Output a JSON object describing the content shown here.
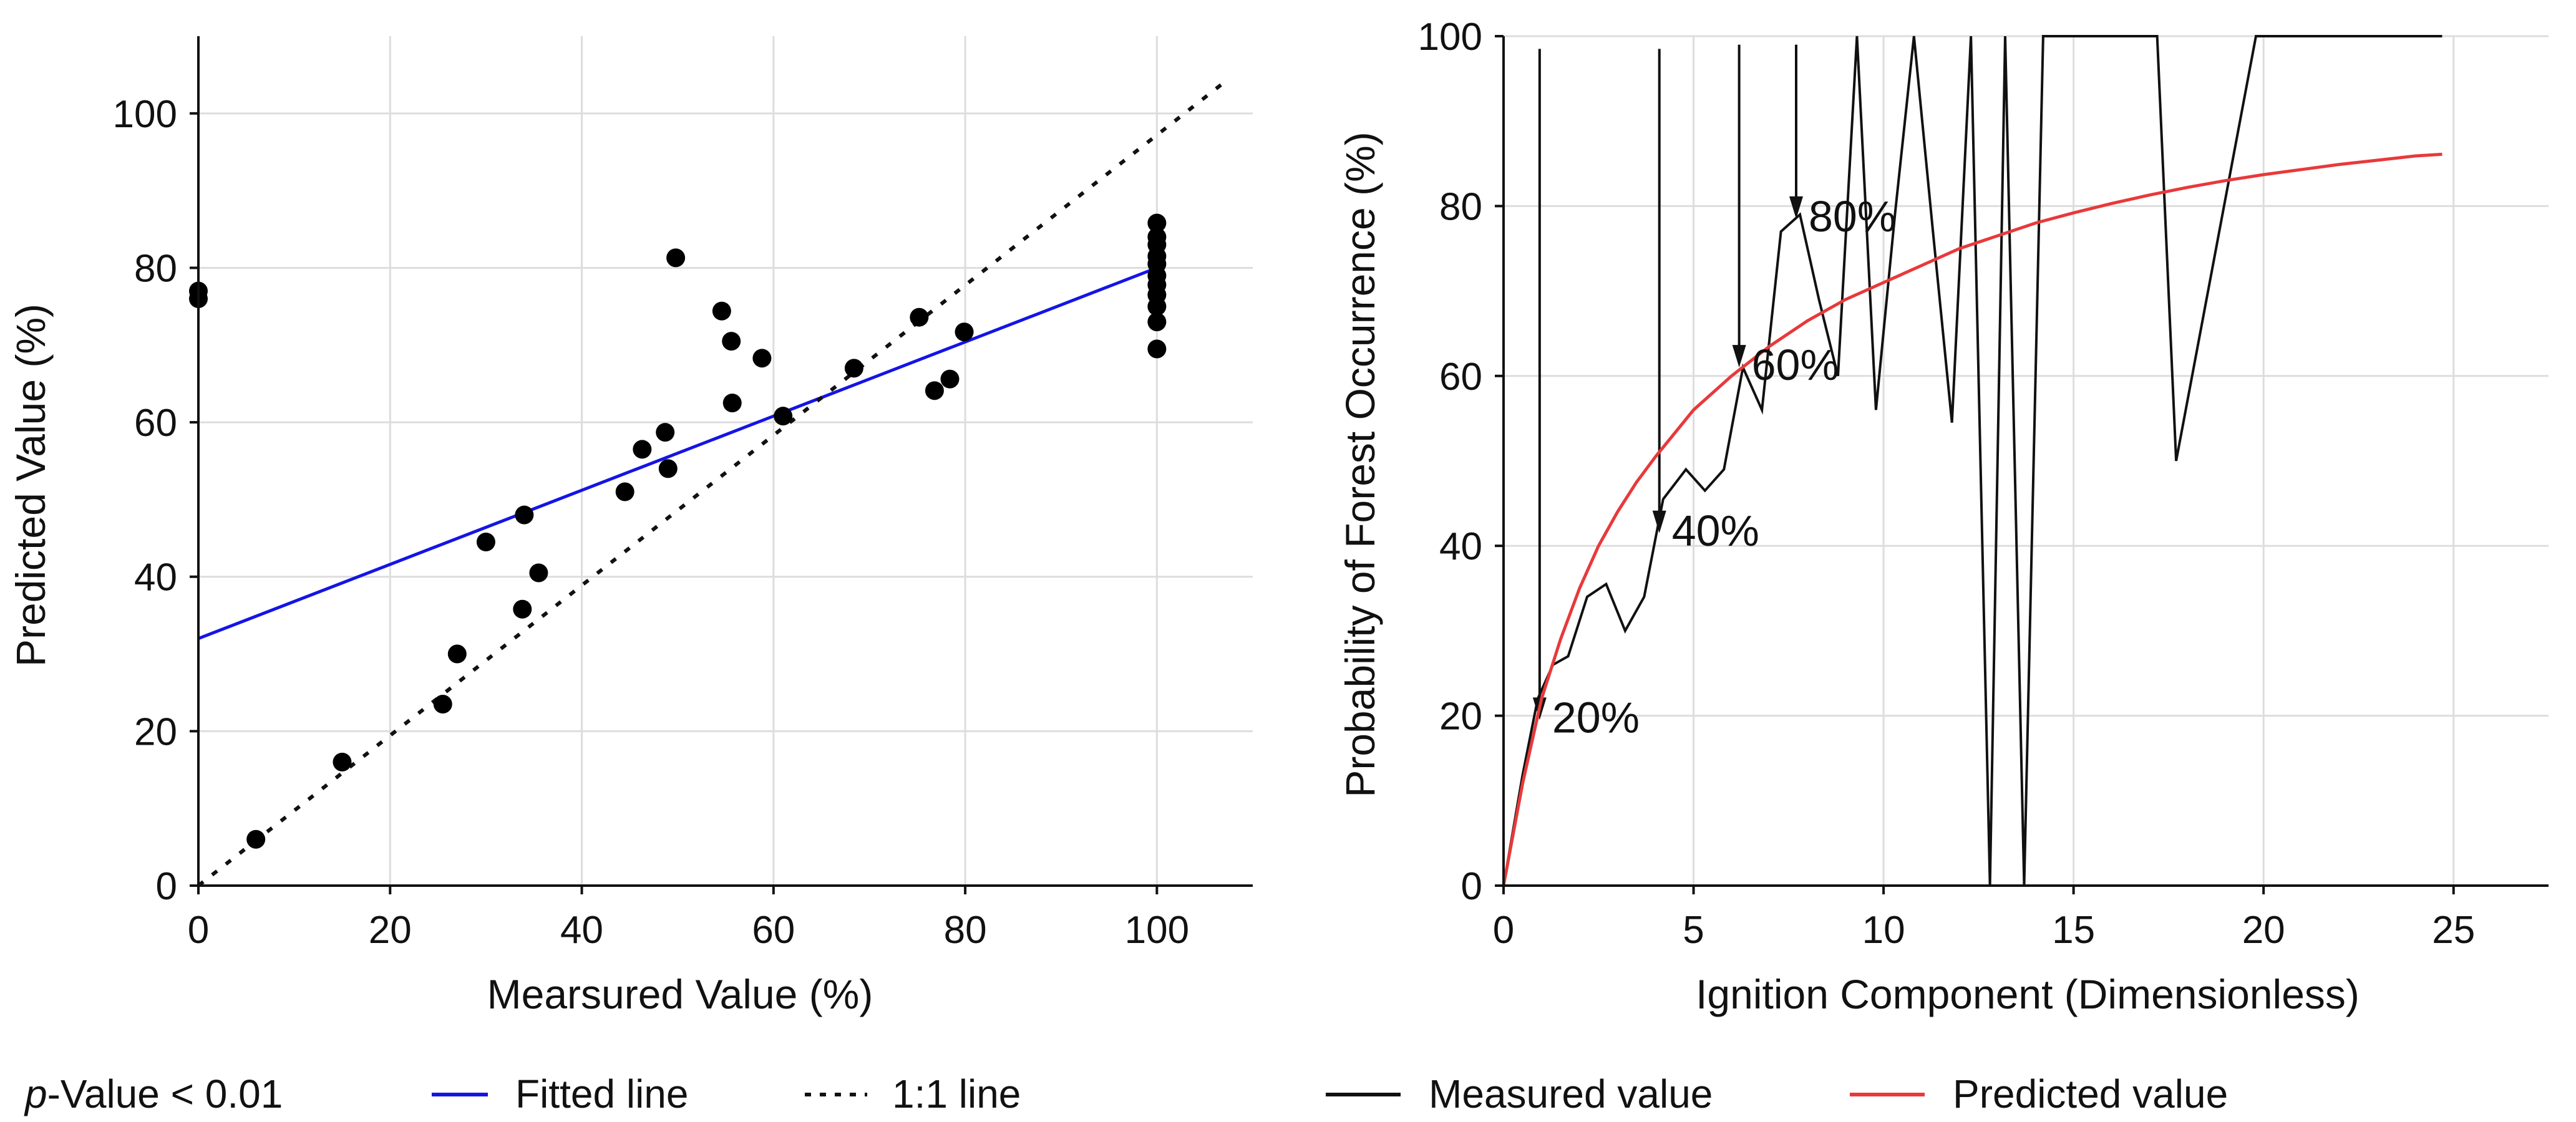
{
  "chart_data": [
    {
      "type": "scatter",
      "title": "",
      "xlabel": "Mearsured Value (%)",
      "ylabel": "Predicted Value (%)",
      "xlim": [
        0,
        110
      ],
      "ylim": [
        0,
        110
      ],
      "xticks": [
        0,
        20,
        40,
        60,
        80,
        100
      ],
      "yticks": [
        0,
        20,
        40,
        60,
        80,
        100
      ],
      "xtick_labels": [
        "0",
        "20",
        "40",
        "60",
        "80",
        "100"
      ],
      "ytick_labels": [
        "0",
        "20",
        "40",
        "60",
        "80",
        "100"
      ],
      "grid": true,
      "points": [
        [
          0,
          77
        ],
        [
          0,
          76
        ],
        [
          6,
          6
        ],
        [
          15,
          16
        ],
        [
          25.5,
          23.5
        ],
        [
          27,
          30
        ],
        [
          30,
          44.5
        ],
        [
          33.8,
          35.8
        ],
        [
          34,
          48
        ],
        [
          35.5,
          40.5
        ],
        [
          44.5,
          51
        ],
        [
          46.3,
          56.5
        ],
        [
          48.7,
          58.7
        ],
        [
          49,
          54
        ],
        [
          49.8,
          81.3
        ],
        [
          54.6,
          74.4
        ],
        [
          55.6,
          70.5
        ],
        [
          55.7,
          62.5
        ],
        [
          58.8,
          68.3
        ],
        [
          61,
          60.8
        ],
        [
          68.4,
          67
        ],
        [
          75.2,
          73.6
        ],
        [
          76.8,
          64.1
        ],
        [
          78.4,
          65.6
        ],
        [
          79.9,
          71.7
        ],
        [
          100,
          85.8
        ],
        [
          100,
          84
        ],
        [
          100,
          83
        ],
        [
          100,
          81.5
        ],
        [
          100,
          80.5
        ],
        [
          100,
          79
        ],
        [
          100,
          77.8
        ],
        [
          100,
          76.5
        ],
        [
          100,
          75
        ],
        [
          100,
          73
        ],
        [
          100,
          69.5
        ]
      ],
      "fitted_line": {
        "name": "Fitted line",
        "color": "#1414e6",
        "from": [
          0,
          32
        ],
        "to": [
          100,
          80
        ]
      },
      "one_to_one": {
        "name": "1:1 line",
        "color": "#111111",
        "from": [
          0,
          0
        ],
        "to": [
          107,
          104
        ]
      }
    },
    {
      "type": "line",
      "title": "",
      "xlabel": "Ignition Component (Dimensionless)",
      "ylabel": "Probability of Forest Occurrence (%)",
      "xlim": [
        0,
        27.5
      ],
      "ylim": [
        0,
        100
      ],
      "xticks": [
        0,
        5,
        10,
        15,
        20,
        25
      ],
      "yticks": [
        0,
        20,
        40,
        60,
        80,
        100
      ],
      "xtick_labels": [
        "0",
        "5",
        "10",
        "15",
        "20",
        "25"
      ],
      "ytick_labels": [
        "0",
        "20",
        "40",
        "60",
        "80",
        "100"
      ],
      "grid": true,
      "series": [
        {
          "name": "Measured value",
          "color": "#111111",
          "x": [
            0,
            0.5,
            0.9,
            1.3,
            1.7,
            2.2,
            2.7,
            3.2,
            3.7,
            4.2,
            4.8,
            5.3,
            5.8,
            6.3,
            6.8,
            7.3,
            7.8,
            8.3,
            8.8,
            9.3,
            9.8,
            10.3,
            10.8,
            11.3,
            11.8,
            12.3,
            12.8,
            13.2,
            13.7,
            14.2,
            14.4,
            17.2,
            17.7,
            19.8,
            24.7
          ],
          "values": [
            0,
            13,
            22,
            26,
            27,
            34,
            35.5,
            30,
            34,
            45.5,
            49,
            46.5,
            49,
            61,
            56,
            77,
            79,
            69,
            60,
            100,
            56,
            79,
            100,
            77,
            54.5,
            100,
            0,
            100,
            0,
            100,
            100,
            100,
            50,
            100,
            100
          ]
        },
        {
          "name": "Predicted value",
          "color": "#e8393b",
          "x": [
            0,
            0.5,
            1,
            1.5,
            2,
            2.5,
            3,
            3.5,
            4,
            5,
            6,
            7,
            8,
            9,
            10,
            11,
            12,
            13,
            14,
            15,
            16,
            17,
            18,
            19,
            20,
            21,
            22,
            23,
            24,
            24.7
          ],
          "values": [
            0,
            12,
            22,
            29,
            35,
            40,
            44,
            47.5,
            50.5,
            56,
            60,
            63.5,
            66.5,
            69,
            71,
            73,
            75,
            76.5,
            78,
            79.2,
            80.3,
            81.3,
            82.2,
            83,
            83.7,
            84.3,
            84.9,
            85.4,
            85.9,
            86.1
          ]
        }
      ],
      "annotations": [
        {
          "text": "20%",
          "x": 0.95,
          "y": 19.5,
          "arrow_top": 98.5
        },
        {
          "text": "40%",
          "x": 4.1,
          "y": 41.5,
          "arrow_top": 98.5
        },
        {
          "text": "60%",
          "x": 6.2,
          "y": 61,
          "arrow_top": 99
        },
        {
          "text": "80%",
          "x": 7.7,
          "y": 78.5,
          "arrow_top": 99
        }
      ]
    }
  ],
  "legend_left": {
    "p_label_italic": "p",
    "p_label_rest": "-Value < 0.01",
    "fitted_label": "Fitted line",
    "one_to_one_label": "1:1 line"
  },
  "legend_right": {
    "measured_label": "Measured value",
    "predicted_label": "Predicted value"
  }
}
